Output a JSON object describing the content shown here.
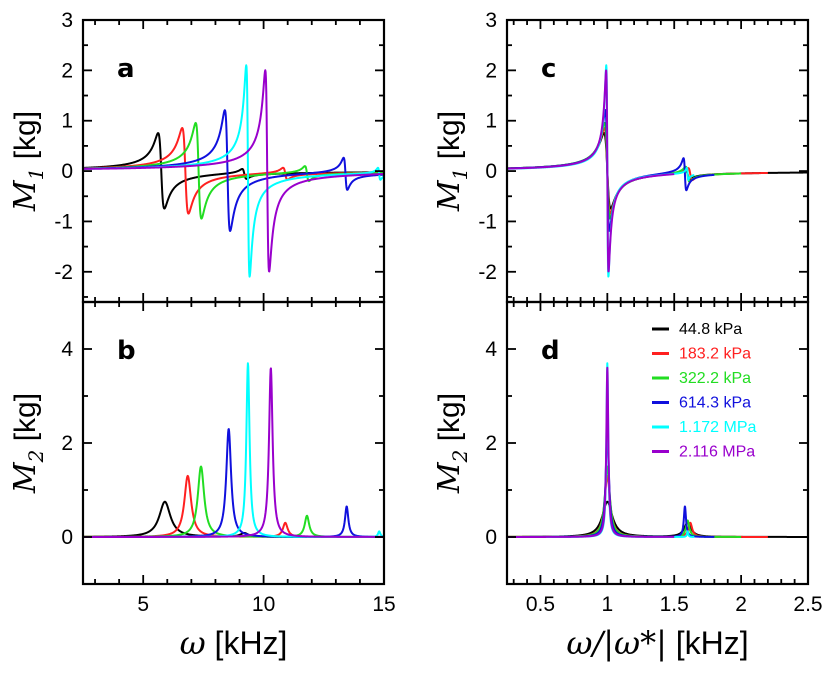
{
  "chart_data": [
    {
      "panel": "a",
      "type": "line",
      "xlim": [
        2.5,
        15
      ],
      "ylim": [
        -2.6,
        3
      ],
      "xticks": [
        5,
        10,
        15
      ],
      "yticks": [
        -2,
        -1,
        0,
        1,
        2,
        3
      ],
      "xticklabels": [],
      "yticklabels": [
        "-2",
        "-1",
        "0",
        "1",
        "2",
        "3"
      ],
      "ylabel": {
        "var": "M",
        "sub": "1",
        "unit": "[kg]"
      },
      "xlabel": null,
      "curve": "dispersive",
      "series": [
        {
          "name": "44.8 kPa",
          "color": "#000000",
          "w0": 5.75,
          "amp": 0.75,
          "gamma": 0.13,
          "w2": 9.2,
          "amp2": 0.1
        },
        {
          "name": "183.2 kPa",
          "color": "#ff2020",
          "w0": 6.75,
          "amp": 0.85,
          "gamma": 0.13,
          "w2": 10.9,
          "amp2": 0.12
        },
        {
          "name": "322.2 kPa",
          "color": "#22dd22",
          "w0": 7.3,
          "amp": 0.95,
          "gamma": 0.12,
          "w2": 11.8,
          "amp2": 0.15
        },
        {
          "name": "614.3 kPa",
          "color": "#1010dd",
          "w0": 8.5,
          "amp": 1.2,
          "gamma": 0.11,
          "w2": 13.4,
          "amp2": 0.32
        },
        {
          "name": "1.172 MPa",
          "color": "#00ffff",
          "w0": 9.35,
          "amp": 2.1,
          "gamma": 0.07,
          "w2": 14.8,
          "amp2": 0.12
        },
        {
          "name": "2.116 MPa",
          "color": "#9900cc",
          "w0": 10.15,
          "amp": 2.0,
          "gamma": 0.08,
          "w2": 16.2,
          "amp2": 0.1
        }
      ]
    },
    {
      "panel": "b",
      "type": "line",
      "xlim": [
        2.5,
        15
      ],
      "ylim": [
        -1,
        5
      ],
      "xticks": [
        5,
        10,
        15
      ],
      "yticks": [
        0,
        2,
        4
      ],
      "xticklabels": [
        "5",
        "10",
        "15"
      ],
      "yticklabels": [
        "0",
        "2",
        "4"
      ],
      "ylabel": {
        "var": "M",
        "sub": "2",
        "unit": "[kg]"
      },
      "xlabel": {
        "var": "ω",
        "unit": "[kHz]"
      },
      "curve": "absorptive",
      "series": [
        {
          "name": "44.8 kPa",
          "color": "#000000",
          "w0": 5.9,
          "amp": 0.75,
          "gamma": 0.28,
          "w2": 9.2,
          "amp2": 0.08
        },
        {
          "name": "183.2 kPa",
          "color": "#ff2020",
          "w0": 6.85,
          "amp": 1.3,
          "gamma": 0.17,
          "w2": 10.9,
          "amp2": 0.3
        },
        {
          "name": "322.2 kPa",
          "color": "#22dd22",
          "w0": 7.4,
          "amp": 1.5,
          "gamma": 0.16,
          "w2": 11.8,
          "amp2": 0.45
        },
        {
          "name": "614.3 kPa",
          "color": "#1010dd",
          "w0": 8.55,
          "amp": 2.3,
          "gamma": 0.12,
          "w2": 13.45,
          "amp2": 0.65
        },
        {
          "name": "1.172 MPa",
          "color": "#00ffff",
          "w0": 9.35,
          "amp": 3.7,
          "gamma": 0.08,
          "w2": 14.8,
          "amp2": 0.12
        },
        {
          "name": "2.116 MPa",
          "color": "#9900cc",
          "w0": 10.3,
          "amp": 3.6,
          "gamma": 0.09,
          "w2": 16.2,
          "amp2": 0.1
        }
      ]
    },
    {
      "panel": "c",
      "type": "line",
      "xlim": [
        0.25,
        2.5
      ],
      "ylim": [
        -2.6,
        3
      ],
      "xticks": [
        0.5,
        1,
        1.5,
        2,
        2.5
      ],
      "yticks": [
        -2,
        -1,
        0,
        1,
        2,
        3
      ],
      "xticklabels": [],
      "yticklabels": [
        "-2",
        "-1",
        "0",
        "1",
        "2",
        "3"
      ],
      "ylabel": {
        "var": "M",
        "sub": "1",
        "unit": "[kg]"
      },
      "xlabel": null,
      "curve": "dispersive",
      "series": [
        {
          "name": "44.8 kPa",
          "color": "#000000",
          "w0": 1.0,
          "amp": 0.75,
          "gamma": 0.025,
          "w2": 1.6,
          "amp2": 0.1,
          "xmax": 2.5
        },
        {
          "name": "183.2 kPa",
          "color": "#ff2020",
          "w0": 1.0,
          "amp": 0.85,
          "gamma": 0.022,
          "w2": 1.62,
          "amp2": 0.12,
          "xmax": 2.2
        },
        {
          "name": "322.2 kPa",
          "color": "#22dd22",
          "w0": 1.0,
          "amp": 0.95,
          "gamma": 0.02,
          "w2": 1.6,
          "amp2": 0.15,
          "xmax": 2.0
        },
        {
          "name": "614.3 kPa",
          "color": "#1010dd",
          "w0": 1.0,
          "amp": 1.2,
          "gamma": 0.015,
          "w2": 1.58,
          "amp2": 0.32,
          "xmax": 1.8
        },
        {
          "name": "1.172 MPa",
          "color": "#00ffff",
          "w0": 1.0,
          "amp": 2.1,
          "gamma": 0.008,
          "w2": 1.6,
          "amp2": 0.12,
          "xmax": 1.65
        },
        {
          "name": "2.116 MPa",
          "color": "#9900cc",
          "w0": 1.0,
          "amp": 2.0,
          "gamma": 0.009,
          "w2": 1.6,
          "amp2": 0.1,
          "xmax": 1.5
        }
      ]
    },
    {
      "panel": "d",
      "type": "line",
      "xlim": [
        0.25,
        2.5
      ],
      "ylim": [
        -1,
        5
      ],
      "xticks": [
        0.5,
        1,
        1.5,
        2,
        2.5
      ],
      "yticks": [
        0,
        2,
        4
      ],
      "xticklabels": [
        "0.5",
        "1",
        "1.5",
        "2",
        "2.5"
      ],
      "yticklabels": [
        "0",
        "2",
        "4"
      ],
      "ylabel": {
        "var": "M",
        "sub": "2",
        "unit": "[kg]"
      },
      "xlabel": {
        "var": "ω/|ω*|",
        "unit": "[kHz]"
      },
      "curve": "absorptive",
      "legend": {
        "placement": "top-right"
      },
      "series": [
        {
          "name": "44.8 kPa",
          "color": "#000000",
          "w0": 1.0,
          "amp": 0.75,
          "gamma": 0.045,
          "w2": 1.6,
          "amp2": 0.3,
          "xmax": 2.5
        },
        {
          "name": "183.2 kPa",
          "color": "#ff2020",
          "w0": 1.0,
          "amp": 1.3,
          "gamma": 0.025,
          "w2": 1.62,
          "amp2": 0.3,
          "xmax": 2.2
        },
        {
          "name": "322.2 kPa",
          "color": "#22dd22",
          "w0": 1.0,
          "amp": 1.5,
          "gamma": 0.022,
          "w2": 1.6,
          "amp2": 0.35,
          "xmax": 2.0
        },
        {
          "name": "614.3 kPa",
          "color": "#1010dd",
          "w0": 1.0,
          "amp": 2.3,
          "gamma": 0.014,
          "w2": 1.58,
          "amp2": 0.65,
          "xmax": 1.8
        },
        {
          "name": "1.172 MPa",
          "color": "#00ffff",
          "w0": 1.0,
          "amp": 3.7,
          "gamma": 0.008,
          "w2": 1.6,
          "amp2": 0.12,
          "xmax": 1.65
        },
        {
          "name": "2.116 MPa",
          "color": "#9900cc",
          "w0": 1.0,
          "amp": 3.6,
          "gamma": 0.009,
          "w2": 1.6,
          "amp2": 0.1,
          "xmax": 1.5
        }
      ]
    }
  ]
}
